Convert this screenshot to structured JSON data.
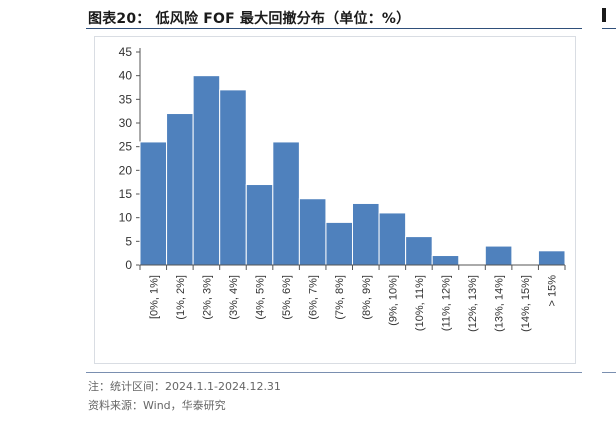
{
  "header": {
    "title": "图表20：  低风险 FOF 最大回撤分布（单位：%）"
  },
  "notes": {
    "note": "注：统计区间：2024.1.1-2024.12.31",
    "source": "资料来源：Wind，华泰研究"
  },
  "colors": {
    "bar": "#4f81bd",
    "bar_edge": "#ffffff",
    "axis": "#555555",
    "rule": "#2f4f7a"
  },
  "chart_data": {
    "type": "bar",
    "title": "低风险 FOF 最大回撤分布（单位：%）",
    "categories": [
      "[0%, 1%]",
      "(1%, 2%]",
      "(2%, 3%]",
      "(3%, 4%]",
      "(4%, 5%]",
      "(5%, 6%]",
      "(6%, 7%]",
      "(7%, 8%]",
      "(8%, 9%]",
      "(9%, 10%]",
      "(10%, 11%]",
      "(11%, 12%]",
      "(12%, 13%]",
      "(13%, 14%]",
      "(14%, 15%]",
      "> 15%"
    ],
    "values": [
      26,
      32,
      40,
      37,
      17,
      26,
      14,
      9,
      13,
      11,
      6,
      2,
      0,
      4,
      0,
      3
    ],
    "ylim": [
      0,
      45
    ],
    "yticks": [
      0,
      5,
      10,
      15,
      20,
      25,
      30,
      35,
      40,
      45
    ],
    "xlabel": "",
    "ylabel": "",
    "grid": false,
    "legend": "none"
  }
}
